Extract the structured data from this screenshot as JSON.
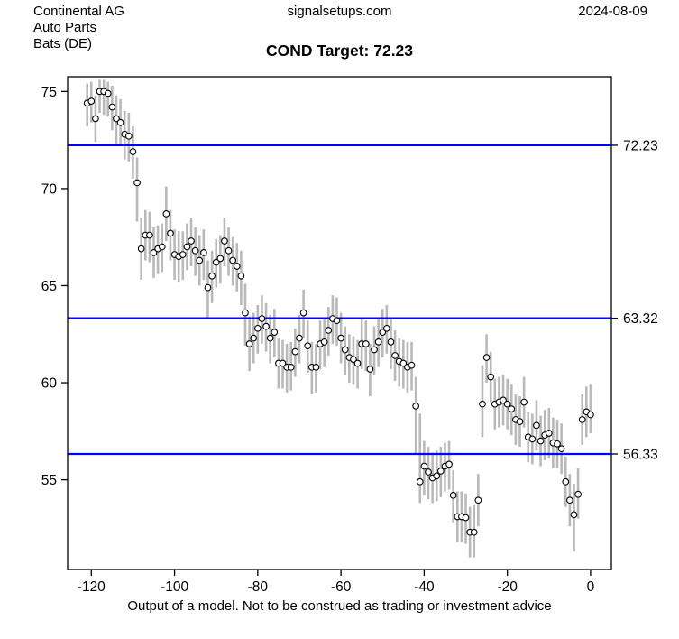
{
  "header": {
    "company": "Continental AG",
    "sector": "Auto Parts",
    "exchange": "Bats (DE)",
    "site": "signalsetups.com",
    "date": "2024-08-09"
  },
  "title": "COND Target: 72.23",
  "footer": "Output of a model. Not to be construed as trading or investment advice",
  "colors": {
    "target_line": "#0000ff",
    "error_bar": "#b9b9b9",
    "point_stroke": "#000000",
    "point_fill": "#ffffff",
    "axis": "#000000"
  },
  "chart_data": {
    "type": "scatter",
    "title": "COND Target: 72.23",
    "xlabel": "",
    "ylabel": "",
    "xlim": [
      -125.7,
      5.0
    ],
    "ylim": [
      50.38,
      75.76
    ],
    "x_ticks": [
      -120,
      -100,
      -80,
      -60,
      -40,
      -20,
      0
    ],
    "y_ticks": [
      55,
      60,
      65,
      70,
      75
    ],
    "grid": false,
    "legend": "none",
    "hlines": [
      {
        "value": 72.23,
        "label": "72.23"
      },
      {
        "value": 63.32,
        "label": "63.32"
      },
      {
        "value": 56.33,
        "label": "56.33"
      }
    ],
    "points_format": [
      "day",
      "value",
      "low",
      "high"
    ],
    "points": [
      [
        -121,
        74.4,
        73.2,
        75.4
      ],
      [
        -120,
        74.5,
        73.4,
        75.5
      ],
      [
        -119,
        73.6,
        72.4,
        74.8
      ],
      [
        -118,
        75.0,
        73.9,
        75.6
      ],
      [
        -117,
        75.0,
        73.8,
        75.6
      ],
      [
        -116,
        74.9,
        73.7,
        75.5
      ],
      [
        -115,
        74.2,
        73.0,
        75.3
      ],
      [
        -114,
        73.6,
        72.3,
        74.8
      ],
      [
        -113,
        73.4,
        72.2,
        74.6
      ],
      [
        -112,
        72.8,
        71.5,
        74.0
      ],
      [
        -111,
        72.7,
        71.4,
        73.9
      ],
      [
        -110,
        71.9,
        70.5,
        73.2
      ],
      [
        -109,
        70.3,
        68.3,
        71.6
      ],
      [
        -108,
        66.9,
        65.3,
        68.5
      ],
      [
        -107,
        67.6,
        66.3,
        68.9
      ],
      [
        -106,
        67.6,
        66.2,
        68.8
      ],
      [
        -105,
        66.7,
        65.4,
        68.0
      ],
      [
        -104,
        66.9,
        65.6,
        68.1
      ],
      [
        -103,
        67.0,
        65.7,
        68.2
      ],
      [
        -102,
        68.7,
        67.3,
        70.1
      ],
      [
        -101,
        67.7,
        66.3,
        68.9
      ],
      [
        -100,
        66.6,
        65.3,
        67.9
      ],
      [
        -99,
        66.5,
        65.2,
        67.8
      ],
      [
        -98,
        66.6,
        65.3,
        67.8
      ],
      [
        -97,
        67.0,
        65.8,
        68.2
      ],
      [
        -96,
        67.3,
        66.0,
        68.5
      ],
      [
        -95,
        66.8,
        65.5,
        68.0
      ],
      [
        -94,
        66.3,
        65.0,
        67.6
      ],
      [
        -93,
        66.7,
        65.3,
        67.9
      ],
      [
        -92,
        64.9,
        63.3,
        66.3
      ],
      [
        -91,
        65.5,
        64.1,
        66.8
      ],
      [
        -90,
        66.2,
        64.9,
        67.4
      ],
      [
        -89,
        66.4,
        65.1,
        67.6
      ],
      [
        -88,
        67.3,
        66.0,
        68.5
      ],
      [
        -87,
        66.8,
        65.5,
        68.0
      ],
      [
        -86,
        66.3,
        65.0,
        67.5
      ],
      [
        -85,
        66.0,
        64.7,
        67.2
      ],
      [
        -84,
        65.5,
        64.0,
        66.8
      ],
      [
        -83,
        63.6,
        61.9,
        65.1
      ],
      [
        -82,
        62.0,
        60.6,
        63.4
      ],
      [
        -81,
        62.3,
        61.0,
        63.6
      ],
      [
        -80,
        62.8,
        61.5,
        64.0
      ],
      [
        -79,
        63.3,
        62.0,
        64.5
      ],
      [
        -78,
        62.9,
        61.6,
        64.1
      ],
      [
        -77,
        62.3,
        61.0,
        63.5
      ],
      [
        -76,
        62.6,
        61.3,
        63.8
      ],
      [
        -75,
        61.0,
        59.7,
        62.3
      ],
      [
        -74,
        61.0,
        59.7,
        62.2
      ],
      [
        -73,
        60.8,
        59.5,
        62.0
      ],
      [
        -72,
        60.8,
        59.6,
        62.1
      ],
      [
        -71,
        61.6,
        60.3,
        62.8
      ],
      [
        -70,
        62.3,
        61.0,
        63.5
      ],
      [
        -69,
        63.6,
        62.3,
        64.8
      ],
      [
        -68,
        61.9,
        60.5,
        63.2
      ],
      [
        -67,
        60.8,
        59.4,
        62.1
      ],
      [
        -66,
        60.8,
        59.5,
        62.0
      ],
      [
        -65,
        62.0,
        60.7,
        63.2
      ],
      [
        -64,
        62.1,
        60.8,
        63.3
      ],
      [
        -63,
        62.7,
        61.4,
        63.9
      ],
      [
        -62,
        63.3,
        62.0,
        64.5
      ],
      [
        -61,
        63.2,
        61.9,
        64.4
      ],
      [
        -60,
        62.3,
        61.0,
        63.6
      ],
      [
        -59,
        61.7,
        60.4,
        62.9
      ],
      [
        -58,
        61.3,
        60.0,
        62.5
      ],
      [
        -57,
        61.2,
        59.9,
        62.4
      ],
      [
        -56,
        61.0,
        59.7,
        62.2
      ],
      [
        -55,
        62.0,
        60.7,
        63.3
      ],
      [
        -54,
        62.0,
        60.6,
        63.2
      ],
      [
        -53,
        60.7,
        59.3,
        62.0
      ],
      [
        -52,
        61.7,
        60.4,
        62.9
      ],
      [
        -51,
        62.1,
        60.8,
        63.3
      ],
      [
        -50,
        62.6,
        61.3,
        63.8
      ],
      [
        -49,
        62.8,
        61.5,
        64.0
      ],
      [
        -48,
        62.1,
        60.7,
        63.3
      ],
      [
        -47,
        61.4,
        60.1,
        62.7
      ],
      [
        -46,
        61.1,
        59.8,
        62.3
      ],
      [
        -45,
        61.0,
        59.7,
        62.2
      ],
      [
        -44,
        60.8,
        59.5,
        62.1
      ],
      [
        -43,
        60.9,
        59.6,
        62.1
      ],
      [
        -42,
        58.8,
        56.3,
        60.3
      ],
      [
        -41,
        54.9,
        53.8,
        58.4
      ],
      [
        -40,
        55.7,
        54.2,
        57.0
      ],
      [
        -39,
        55.4,
        54.0,
        56.7
      ],
      [
        -38,
        55.1,
        53.8,
        56.4
      ],
      [
        -37,
        55.2,
        53.9,
        56.5
      ],
      [
        -36,
        55.45,
        54.1,
        56.7
      ],
      [
        -35,
        55.7,
        54.4,
        56.9
      ],
      [
        -34,
        55.8,
        54.5,
        57.0
      ],
      [
        -33,
        54.2,
        52.8,
        55.5
      ],
      [
        -32,
        53.1,
        51.8,
        54.4
      ],
      [
        -31,
        53.1,
        51.8,
        54.4
      ],
      [
        -30,
        53.05,
        51.7,
        54.3
      ],
      [
        -29,
        52.3,
        51.0,
        53.6
      ],
      [
        -28,
        52.3,
        51.0,
        53.7
      ],
      [
        -27,
        53.95,
        52.6,
        55.3
      ],
      [
        -26,
        58.9,
        57.2,
        60.9
      ],
      [
        -25,
        61.3,
        60.0,
        62.5
      ],
      [
        -24,
        60.3,
        59.0,
        61.6
      ],
      [
        -23,
        58.9,
        57.6,
        60.2
      ],
      [
        -22,
        59.0,
        57.7,
        60.3
      ],
      [
        -21,
        59.1,
        57.8,
        60.4
      ],
      [
        -20,
        58.9,
        57.6,
        60.2
      ],
      [
        -19,
        58.65,
        57.3,
        59.9
      ],
      [
        -18,
        58.1,
        56.8,
        59.4
      ],
      [
        -17,
        58.0,
        56.7,
        59.3
      ],
      [
        -16,
        59.0,
        57.7,
        60.3
      ],
      [
        -15,
        57.2,
        55.9,
        58.5
      ],
      [
        -14,
        57.1,
        55.8,
        58.4
      ],
      [
        -13,
        57.8,
        56.5,
        59.1
      ],
      [
        -12,
        57.0,
        55.7,
        58.3
      ],
      [
        -11,
        57.3,
        56.0,
        58.6
      ],
      [
        -10,
        57.4,
        56.1,
        58.7
      ],
      [
        -9,
        56.9,
        55.6,
        58.2
      ],
      [
        -8,
        56.85,
        55.6,
        58.1
      ],
      [
        -7,
        56.6,
        55.3,
        57.9
      ],
      [
        -6,
        54.9,
        53.6,
        56.2
      ],
      [
        -5,
        53.95,
        52.6,
        55.3
      ],
      [
        -4,
        53.2,
        51.3,
        54.8
      ],
      [
        -3,
        54.25,
        53.0,
        55.6
      ],
      [
        -2,
        58.1,
        56.8,
        59.4
      ],
      [
        -1,
        58.5,
        57.2,
        59.8
      ],
      [
        0,
        58.35,
        57.4,
        59.9
      ]
    ]
  }
}
